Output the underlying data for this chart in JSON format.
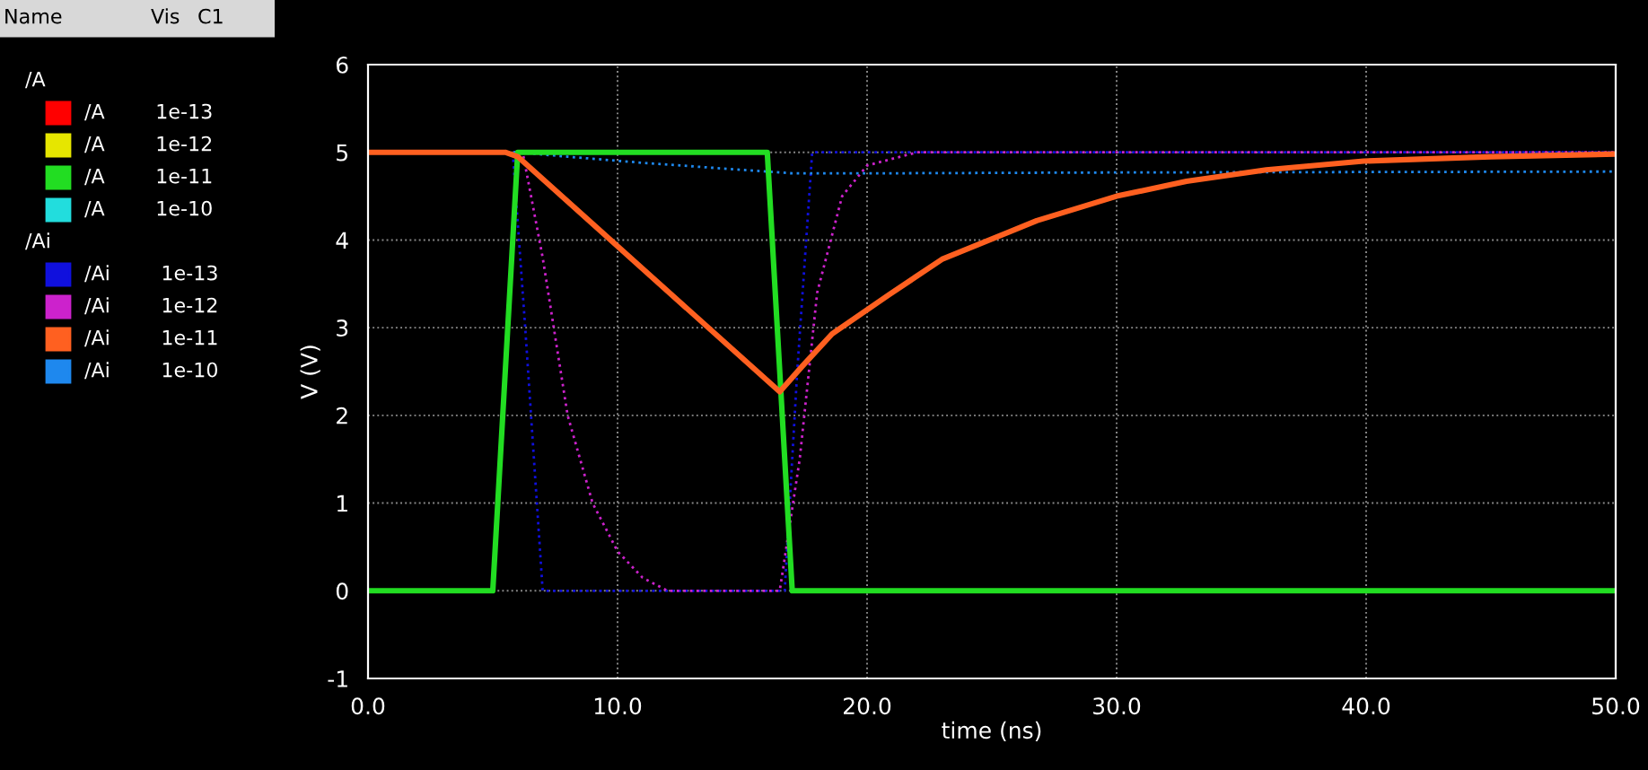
{
  "chart_data": {
    "type": "line",
    "xlabel": "time (ns)",
    "ylabel": "V (V)",
    "xlim": [
      0,
      50
    ],
    "ylim": [
      -1,
      6
    ],
    "xticks": [
      {
        "value": 0,
        "label": "0.0"
      },
      {
        "value": 10,
        "label": "10.0"
      },
      {
        "value": 20,
        "label": "20.0"
      },
      {
        "value": 30,
        "label": "30.0"
      },
      {
        "value": 40,
        "label": "40.0"
      },
      {
        "value": 50,
        "label": "50.0"
      }
    ],
    "yticks": [
      -1,
      0,
      1,
      2,
      3,
      4,
      5,
      6
    ],
    "grid": true,
    "legend": "left",
    "marker": "none",
    "annotations": [
      "Name",
      "Vis",
      "C1",
      "/A",
      "/Ai"
    ],
    "series": [
      {
        "name": "/A 1e-13",
        "color": "#ff0000",
        "line_style": "solid"
      },
      {
        "name": "/A 1e-12",
        "color": "#e6e600",
        "line_style": "solid"
      },
      {
        "name": "/A 1e-11",
        "color": "#22dd22",
        "line_style": "solid",
        "x": [
          0,
          5,
          6,
          16,
          17,
          50
        ],
        "values": [
          0,
          0,
          5,
          5,
          0,
          0
        ]
      },
      {
        "name": "/A 1e-10",
        "color": "#22dddd",
        "line_style": "solid"
      },
      {
        "name": "/Ai 1e-13",
        "color": "#1010dd",
        "line_style": "dotted",
        "x": [
          0,
          5.8,
          6.3,
          7,
          16.7,
          17.2,
          17.8,
          50
        ],
        "values": [
          5,
          5,
          3,
          0,
          0,
          2.5,
          5,
          5
        ]
      },
      {
        "name": "/Ai 1e-12",
        "color": "#cc22cc",
        "line_style": "dotted",
        "x": [
          0,
          6.2,
          7,
          8,
          9,
          10,
          11,
          12,
          16.5,
          17.3,
          18,
          19,
          20,
          22,
          50
        ],
        "values": [
          5,
          5,
          3.8,
          2,
          1,
          0.45,
          0.15,
          0,
          0,
          1.5,
          3.4,
          4.5,
          4.85,
          5,
          5
        ]
      },
      {
        "name": "/Ai 1e-11",
        "color": "#ff6020",
        "line_style": "solid",
        "x": [
          0,
          5.5,
          6,
          16.5,
          17.4,
          18.6,
          20.9,
          23,
          26.8,
          30,
          32.8,
          36,
          39.9,
          45,
          50
        ],
        "values": [
          5,
          5,
          4.95,
          2.27,
          2.56,
          2.93,
          3.38,
          3.78,
          4.22,
          4.5,
          4.67,
          4.8,
          4.9,
          4.95,
          4.98
        ]
      },
      {
        "name": "/Ai 1e-10",
        "color": "#1e88ee",
        "line_style": "dotted",
        "x": [
          0,
          6,
          8,
          11,
          14,
          17,
          20,
          30,
          50
        ],
        "values": [
          5,
          5,
          4.95,
          4.88,
          4.82,
          4.76,
          4.76,
          4.77,
          4.78
        ]
      }
    ]
  }
}
